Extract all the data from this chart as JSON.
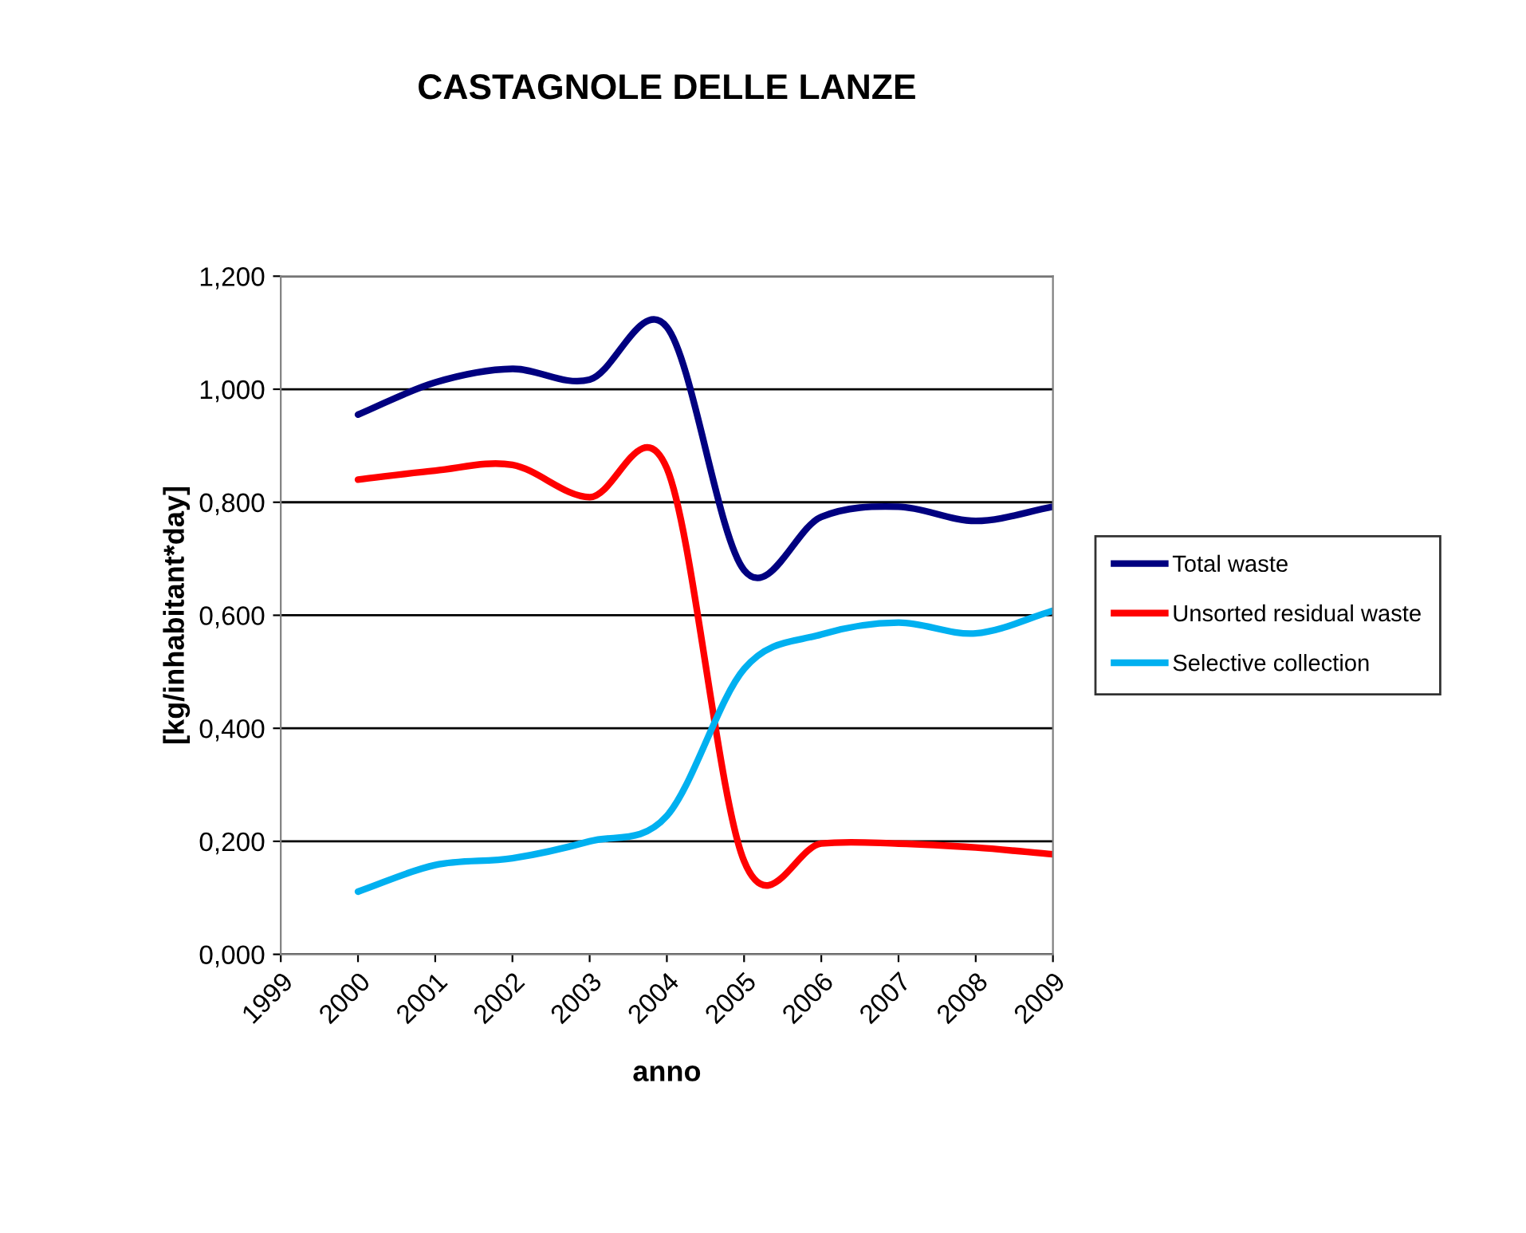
{
  "chart_data": {
    "type": "line",
    "title": "CASTAGNOLE DELLE LANZE",
    "xlabel": "anno",
    "ylabel": "[kg/inhabitant*day]",
    "x": [
      2000,
      2001,
      2002,
      2003,
      2004,
      2005,
      2006,
      2007,
      2008,
      2009
    ],
    "series": [
      {
        "name": "Total waste",
        "color": "#000080",
        "values": [
          0.955,
          1.012,
          1.036,
          1.017,
          1.11,
          0.68,
          0.774,
          0.792,
          0.767,
          0.792
        ]
      },
      {
        "name": "Unsorted residual waste",
        "color": "#ff0000",
        "values": [
          0.84,
          0.856,
          0.866,
          0.809,
          0.86,
          0.165,
          0.196,
          0.196,
          0.189,
          0.177
        ]
      },
      {
        "name": "Selective collection",
        "color": "#00b0f0",
        "values": [
          0.111,
          0.158,
          0.17,
          0.2,
          0.245,
          0.505,
          0.566,
          0.587,
          0.568,
          0.608
        ]
      }
    ],
    "xlim": [
      1999,
      2009
    ],
    "xticks": [
      1999,
      2000,
      2001,
      2002,
      2003,
      2004,
      2005,
      2006,
      2007,
      2008,
      2009
    ],
    "ylim": [
      0,
      1.2
    ],
    "yticks": [
      {
        "value": 0,
        "label": "0,000"
      },
      {
        "value": 0.2,
        "label": "0,200"
      },
      {
        "value": 0.4,
        "label": "0,400"
      },
      {
        "value": 0.6,
        "label": "0,600"
      },
      {
        "value": 0.8,
        "label": "0,800"
      },
      {
        "value": 1.0,
        "label": "1,000"
      },
      {
        "value": 1.2,
        "label": "1,200"
      }
    ],
    "grid": "y",
    "legend": "right",
    "line_style": "solid"
  }
}
